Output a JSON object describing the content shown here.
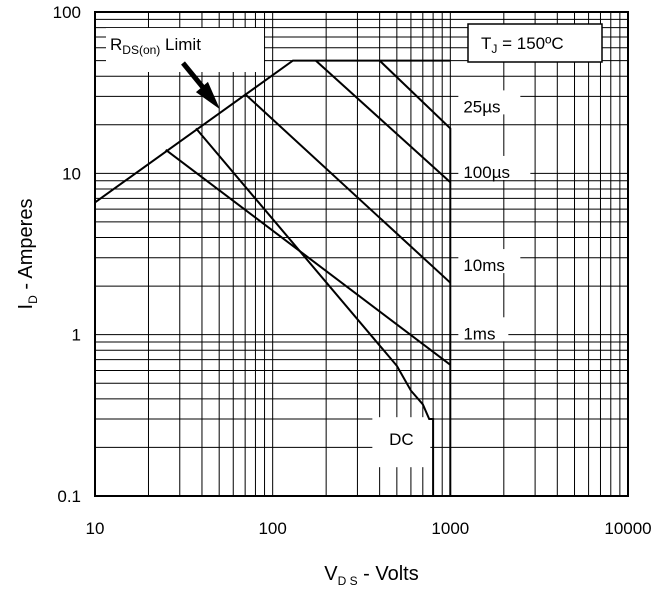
{
  "chart_data": {
    "type": "line",
    "xscale": "log",
    "yscale": "log",
    "xlim": [
      10,
      10000
    ],
    "ylim": [
      0.1,
      100
    ],
    "grid": true,
    "xlabel": {
      "main": "V",
      "sub": "D S",
      "rest": " - Volts"
    },
    "ylabel": {
      "main": "I",
      "sub": "D",
      "rest": " - Amperes"
    },
    "xticks": [
      {
        "value": 10,
        "label": "10"
      },
      {
        "value": 100,
        "label": "100"
      },
      {
        "value": 1000,
        "label": "1000"
      },
      {
        "value": 10000,
        "label": "10000"
      }
    ],
    "yticks": [
      {
        "value": 0.1,
        "label": "0.1"
      },
      {
        "value": 1,
        "label": "1"
      },
      {
        "value": 10,
        "label": "10"
      },
      {
        "value": 100,
        "label": "100"
      }
    ],
    "annotations": {
      "rdson": {
        "main": "R",
        "sub": "DS(on)",
        "rest": " Limit"
      },
      "tj": {
        "main": "T",
        "sub": "J",
        "rest": " = 150ºC"
      }
    },
    "series": [
      {
        "id": "rdson-limit",
        "points": [
          [
            10,
            6.6
          ],
          [
            130,
            50
          ],
          [
            1000,
            50
          ]
        ]
      },
      {
        "id": "25us",
        "name": "25µs",
        "points": [
          [
            400,
            50
          ],
          [
            1000,
            19
          ]
        ],
        "drop_to": 0.1
      },
      {
        "id": "100us",
        "name": "100µs",
        "points": [
          [
            175,
            50
          ],
          [
            1000,
            8.8
          ]
        ]
      },
      {
        "id": "1ms",
        "name": "1ms",
        "points": [
          [
            25,
            14
          ],
          [
            1000,
            0.65
          ]
        ]
      },
      {
        "id": "10ms",
        "name": "10ms",
        "points": [
          [
            70,
            31
          ],
          [
            1000,
            2.1
          ]
        ]
      },
      {
        "id": "dc",
        "name": "DC",
        "points": [
          [
            37,
            19
          ],
          [
            500,
            0.64
          ],
          [
            600,
            0.45
          ],
          [
            700,
            0.37
          ],
          [
            760,
            0.3
          ],
          [
            800,
            0.3
          ],
          [
            800,
            0.1
          ]
        ]
      }
    ],
    "curve_labels": [
      {
        "series": "25us",
        "x": 1000,
        "y": 26
      },
      {
        "series": "100us",
        "x": 1000,
        "y": 10.2
      },
      {
        "series": "1ms",
        "x": 1000,
        "y": 1.02
      },
      {
        "series": "10ms",
        "x": 1000,
        "y": 2.7
      },
      {
        "series": "dc",
        "x": 530,
        "y": 0.225
      }
    ]
  }
}
